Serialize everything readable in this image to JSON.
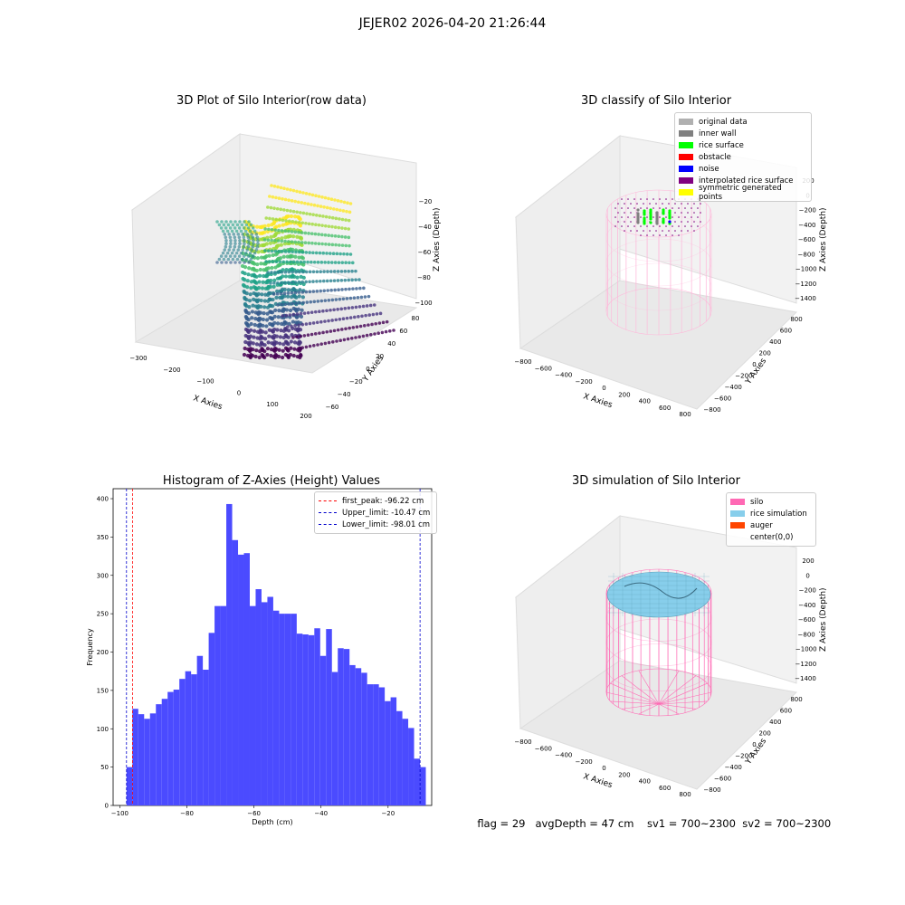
{
  "suptitle": "JEJER02 2026-04-20 21:26:44",
  "colors": {
    "hist_bar": "#4b4bff",
    "first_peak": "#ff0000",
    "limits": "#0000cc",
    "silo_pink": "#ff69b4",
    "rice_blue": "#87ceeb"
  },
  "footer": {
    "flag": "flag = 29",
    "avg": "avgDepth = 47 cm",
    "sv1": "sv1 = 700~2300",
    "sv2": "sv2 = 700~2300"
  },
  "chart_data": [
    {
      "type": "scatter",
      "subtype": "3d",
      "title": "3D Plot of Silo Interior(row data)",
      "xlabel": "X Axies",
      "ylabel": "Y Axies",
      "zlabel": "Z Axies (Depth)",
      "x_ticks": [
        "−300",
        "−200",
        "−100",
        "0",
        "100",
        "200"
      ],
      "y_ticks": [
        "−60",
        "−40",
        "−20",
        "0",
        "20",
        "40",
        "60",
        "80"
      ],
      "z_ticks": [
        "−20",
        "−40",
        "−60",
        "−80",
        "−100"
      ],
      "colormap": "viridis"
    },
    {
      "type": "scatter",
      "subtype": "3d",
      "title": "3D classify of Silo Interior",
      "xlabel": "X Axies",
      "ylabel": "Y Axies",
      "zlabel": "Z Axies (Depth)",
      "x_ticks": [
        "−800",
        "−600",
        "−400",
        "−200",
        "0",
        "200",
        "400",
        "600",
        "800"
      ],
      "y_ticks": [
        "−800",
        "−600",
        "−400",
        "−200",
        "0",
        "200",
        "400",
        "600",
        "800"
      ],
      "z_ticks": [
        "200",
        "0",
        "−200",
        "−400",
        "−600",
        "−800",
        "−1000",
        "−1200",
        "−1400"
      ],
      "legend": [
        {
          "label": "original data",
          "color": "#b0b0b0"
        },
        {
          "label": "inner wall",
          "color": "#808080"
        },
        {
          "label": "rice surface",
          "color": "#00ff00"
        },
        {
          "label": "obstacle",
          "color": "#ff0000"
        },
        {
          "label": "noise",
          "color": "#0000ff"
        },
        {
          "label": "interpolated rice surface",
          "color": "#800080"
        },
        {
          "label": "symmetric generated points",
          "color": "#ffff00"
        }
      ]
    },
    {
      "type": "bar",
      "subtype": "histogram",
      "title": "Histogram of Z-Axies (Height) Values",
      "xlabel": "Depth (cm)",
      "ylabel": "Frequency",
      "xlim": [
        -102,
        -7
      ],
      "ylim": [
        0,
        413
      ],
      "x_ticks": [
        -100,
        -80,
        -60,
        -40,
        -20
      ],
      "x_tick_labels": [
        "−100",
        "−80",
        "−60",
        "−40",
        "−20"
      ],
      "y_ticks": [
        0,
        50,
        100,
        150,
        200,
        250,
        300,
        350,
        400
      ],
      "bin_start": -98.0,
      "bin_width": 1.75,
      "values": [
        50,
        126,
        119,
        113,
        120,
        132,
        139,
        148,
        151,
        165,
        175,
        171,
        195,
        177,
        225,
        260,
        260,
        393,
        346,
        327,
        329,
        260,
        282,
        265,
        272,
        254,
        250,
        250,
        250,
        224,
        223,
        222,
        231,
        195,
        230,
        174,
        205,
        204,
        183,
        179,
        173,
        158,
        158,
        154,
        136,
        141,
        123,
        113,
        101,
        61,
        50
      ],
      "legend": [
        {
          "label": "first_peak: -96.22 cm",
          "value": -96.22,
          "color": "#ff0000"
        },
        {
          "label": "Upper_limit: -10.47 cm",
          "value": -10.47,
          "color": "#0000cc"
        },
        {
          "label": "Lower_limit: -98.01 cm",
          "value": -98.01,
          "color": "#0000cc"
        }
      ]
    },
    {
      "type": "area",
      "subtype": "3d-surface",
      "title": "3D simulation of Silo Interior",
      "xlabel": "X Axies",
      "ylabel": "Y Axies",
      "zlabel": "Z Axies (Depth)",
      "x_ticks": [
        "−800",
        "−600",
        "−400",
        "−200",
        "0",
        "200",
        "400",
        "600",
        "800"
      ],
      "y_ticks": [
        "−800",
        "−600",
        "−400",
        "−200",
        "0",
        "200",
        "400",
        "600",
        "800"
      ],
      "z_ticks": [
        "200",
        "0",
        "−200",
        "−400",
        "−600",
        "−800",
        "−1000",
        "−1200",
        "−1400"
      ],
      "legend": [
        {
          "label": "silo",
          "color": "#ff69b4"
        },
        {
          "label": "rice simulation",
          "color": "#87ceeb"
        },
        {
          "label": "auger",
          "color": "#ff4500"
        },
        {
          "label": "center(0,0)",
          "color": "none"
        }
      ]
    }
  ]
}
